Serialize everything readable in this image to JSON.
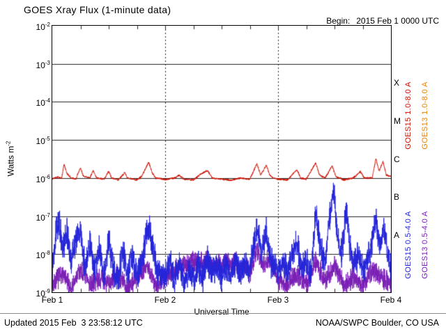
{
  "title": "GOES Xray Flux (1-minute data)",
  "begin": {
    "label": "Begin:",
    "value": "2015 Feb 1 0000 UTC"
  },
  "axes": {
    "x_label": "Universal Time",
    "y_label_base": "Watts m",
    "y_label_exp": "-2"
  },
  "footer": {
    "updated": "Updated 2015 Feb  3 23:58:12 UTC",
    "source": "NOAA/SWPC Boulder, CO USA"
  },
  "chart_data": {
    "type": "line",
    "title": "GOES Xray Flux (1-minute data)",
    "xlabel": "Universal Time",
    "ylabel": "Watts m^-2",
    "x_unit": "hours since 2015 Feb 1 0000 UTC",
    "x_range": [
      0,
      72
    ],
    "x_ticks": [
      {
        "t": 0,
        "label": "Feb 1"
      },
      {
        "t": 24,
        "label": "Feb 2"
      },
      {
        "t": 48,
        "label": "Feb 3"
      },
      {
        "t": 72,
        "label": "Feb 4"
      }
    ],
    "minor_tick_hours": 6,
    "day_gridlines_hours": [
      24,
      48
    ],
    "y_scale": "log10",
    "y_log10_range": [
      -9,
      -2
    ],
    "y_ticks": [
      -2,
      -3,
      -4,
      -5,
      -6,
      -7,
      -8,
      -9
    ],
    "grid": "horizontal solid per decade, vertical dashed per day",
    "flare_classes": [
      {
        "label": "X",
        "log_center": -3.5
      },
      {
        "label": "M",
        "log_center": -4.5
      },
      {
        "label": "C",
        "log_center": -5.5
      },
      {
        "label": "B",
        "log_center": -6.5
      },
      {
        "label": "A",
        "log_center": -7.5
      }
    ],
    "legend_position": "right, rotated vertical",
    "legend": [
      {
        "name": "GOES15 1.0-8.0 A",
        "color": "#cc1100"
      },
      {
        "name": "GOES13 1.0-8.0 A",
        "color": "#e8820e"
      },
      {
        "name": "GOES15 0.5-4.0 A",
        "color": "#2424d8"
      },
      {
        "name": "GOES13 0.5-4.0 A",
        "color": "#7a1fb5"
      }
    ],
    "series_note": "values are log10(Watts m^-2) control points [t_hours, log10_flux]; noise_dex is the 1-minute scatter amplitude; GOES13 1.0-8.0 A trace not visible (overlapped)",
    "series": [
      {
        "name": "GOES13 0.5-4.0 A",
        "color": "#7a1fb5",
        "noise_dex": 0.32,
        "seed": 7,
        "points": [
          [
            0,
            -8.8
          ],
          [
            2,
            -8.5
          ],
          [
            4,
            -8.9
          ],
          [
            6,
            -8.4
          ],
          [
            8,
            -8.8
          ],
          [
            10,
            -8.6
          ],
          [
            12,
            -8.8
          ],
          [
            14,
            -8.5
          ],
          [
            16,
            -8.9
          ],
          [
            18,
            -8.6
          ],
          [
            20,
            -8.3
          ],
          [
            22,
            -8.8
          ],
          [
            24,
            -8.6
          ],
          [
            26,
            -8.4
          ],
          [
            28,
            -8.3
          ],
          [
            30,
            -8.2
          ],
          [
            31,
            -8.15
          ],
          [
            32,
            -8.25
          ],
          [
            33,
            -8.1
          ],
          [
            34,
            -8.3
          ],
          [
            35,
            -8.2
          ],
          [
            36,
            -8.3
          ],
          [
            37,
            -8.15
          ],
          [
            38,
            -8.3
          ],
          [
            39,
            -8.2
          ],
          [
            40,
            -8.4
          ],
          [
            41,
            -8.3
          ],
          [
            42,
            -8.5
          ],
          [
            43.5,
            -7.9
          ],
          [
            45,
            -8.3
          ],
          [
            46,
            -8.1
          ],
          [
            48,
            -8.7
          ],
          [
            50,
            -8.8
          ],
          [
            52,
            -8.5
          ],
          [
            54,
            -8.8
          ],
          [
            56,
            -8.2
          ],
          [
            58,
            -8.7
          ],
          [
            60,
            -8.3
          ],
          [
            62,
            -8.8
          ],
          [
            64,
            -8.6
          ],
          [
            66,
            -8.8
          ],
          [
            68,
            -8.4
          ],
          [
            70,
            -8.6
          ],
          [
            72,
            -8.8
          ]
        ]
      },
      {
        "name": "GOES15 0.5-4.0 A",
        "color": "#2424d8",
        "noise_dex": 0.45,
        "seed": 13,
        "points": [
          [
            0,
            -8.3
          ],
          [
            0.8,
            -7.4
          ],
          [
            1.5,
            -7.1
          ],
          [
            2.2,
            -8.0
          ],
          [
            3,
            -7.35
          ],
          [
            4,
            -8.2
          ],
          [
            5,
            -7.6
          ],
          [
            6,
            -7.4
          ],
          [
            7,
            -8.4
          ],
          [
            8,
            -7.7
          ],
          [
            9,
            -8.5
          ],
          [
            10,
            -7.8
          ],
          [
            11,
            -8.6
          ],
          [
            12,
            -7.6
          ],
          [
            13,
            -8.4
          ],
          [
            14,
            -8.7
          ],
          [
            15,
            -7.9
          ],
          [
            16,
            -8.5
          ],
          [
            17,
            -8.0
          ],
          [
            18,
            -8.6
          ],
          [
            19,
            -8.2
          ],
          [
            20.5,
            -7.2
          ],
          [
            21.5,
            -7.9
          ],
          [
            22.5,
            -8.5
          ],
          [
            24,
            -8.6
          ],
          [
            25,
            -8.2
          ],
          [
            26,
            -8.7
          ],
          [
            27,
            -8.3
          ],
          [
            28,
            -8.8
          ],
          [
            29,
            -8.4
          ],
          [
            30,
            -8.7
          ],
          [
            31,
            -8.3
          ],
          [
            32,
            -8.6
          ],
          [
            33,
            -8.1
          ],
          [
            34,
            -8.5
          ],
          [
            35,
            -8.3
          ],
          [
            36,
            -8.6
          ],
          [
            37,
            -8.3
          ],
          [
            38,
            -8.5
          ],
          [
            39,
            -8.2
          ],
          [
            40,
            -8.5
          ],
          [
            41,
            -8.3
          ],
          [
            42,
            -8.4
          ],
          [
            43.5,
            -7.3
          ],
          [
            44.5,
            -8.0
          ],
          [
            45.5,
            -7.4
          ],
          [
            46.5,
            -8.2
          ],
          [
            48,
            -8.5
          ],
          [
            49,
            -8.1
          ],
          [
            50,
            -8.5
          ],
          [
            51,
            -8.0
          ],
          [
            52,
            -7.7
          ],
          [
            53,
            -8.4
          ],
          [
            54,
            -8.2
          ],
          [
            55,
            -8.5
          ],
          [
            56,
            -6.9
          ],
          [
            57,
            -7.8
          ],
          [
            58,
            -8.2
          ],
          [
            59,
            -7.0
          ],
          [
            59.8,
            -6.3
          ],
          [
            60.6,
            -7.6
          ],
          [
            61.5,
            -8.0
          ],
          [
            62.5,
            -6.85
          ],
          [
            63.3,
            -7.8
          ],
          [
            64,
            -8.3
          ],
          [
            65,
            -8.0
          ],
          [
            66,
            -8.4
          ],
          [
            67,
            -8.2
          ],
          [
            68,
            -7.6
          ],
          [
            68.8,
            -7.05
          ],
          [
            69.6,
            -7.8
          ],
          [
            70.5,
            -7.3
          ],
          [
            71.2,
            -8.0
          ],
          [
            72,
            -8.4
          ]
        ]
      },
      {
        "name": "GOES15 1.0-8.0 A",
        "color": "#cc1100",
        "noise_dex": 0.03,
        "seed": 3,
        "points": [
          [
            0,
            -6.02
          ],
          [
            1,
            -5.98
          ],
          [
            2,
            -6.0
          ],
          [
            2.5,
            -5.63
          ],
          [
            3.1,
            -5.88
          ],
          [
            4,
            -6.0
          ],
          [
            5,
            -6.02
          ],
          [
            6,
            -5.73
          ],
          [
            6.6,
            -5.95
          ],
          [
            8,
            -6.0
          ],
          [
            8.7,
            -5.8
          ],
          [
            9.4,
            -6.0
          ],
          [
            11,
            -6.03
          ],
          [
            12,
            -5.82
          ],
          [
            12.6,
            -6.0
          ],
          [
            14,
            -6.05
          ],
          [
            15.4,
            -5.86
          ],
          [
            16,
            -6.0
          ],
          [
            18,
            -6.05
          ],
          [
            19,
            -5.96
          ],
          [
            20.5,
            -5.58
          ],
          [
            21.3,
            -5.88
          ],
          [
            22,
            -6.0
          ],
          [
            24,
            -6.04
          ],
          [
            26,
            -6.0
          ],
          [
            27,
            -5.93
          ],
          [
            28,
            -6.03
          ],
          [
            30,
            -6.05
          ],
          [
            31.5,
            -5.9
          ],
          [
            33,
            -5.8
          ],
          [
            34,
            -6.0
          ],
          [
            36,
            -6.03
          ],
          [
            38,
            -6.06
          ],
          [
            40,
            -6.0
          ],
          [
            42,
            -6.03
          ],
          [
            43.5,
            -5.62
          ],
          [
            44.3,
            -5.92
          ],
          [
            45.5,
            -5.66
          ],
          [
            46.2,
            -5.92
          ],
          [
            47,
            -6.0
          ],
          [
            48,
            -6.03
          ],
          [
            50,
            -6.05
          ],
          [
            52,
            -5.78
          ],
          [
            52.8,
            -6.0
          ],
          [
            54,
            -6.03
          ],
          [
            56,
            -5.6
          ],
          [
            56.8,
            -5.92
          ],
          [
            58,
            -6.0
          ],
          [
            59.5,
            -5.68
          ],
          [
            60.3,
            -5.96
          ],
          [
            62,
            -6.05
          ],
          [
            64,
            -6.0
          ],
          [
            65.5,
            -5.83
          ],
          [
            66.3,
            -6.0
          ],
          [
            68,
            -6.0
          ],
          [
            68.8,
            -5.5
          ],
          [
            69.5,
            -5.82
          ],
          [
            70.3,
            -5.56
          ],
          [
            71,
            -5.92
          ],
          [
            72,
            -5.96
          ]
        ]
      }
    ]
  }
}
